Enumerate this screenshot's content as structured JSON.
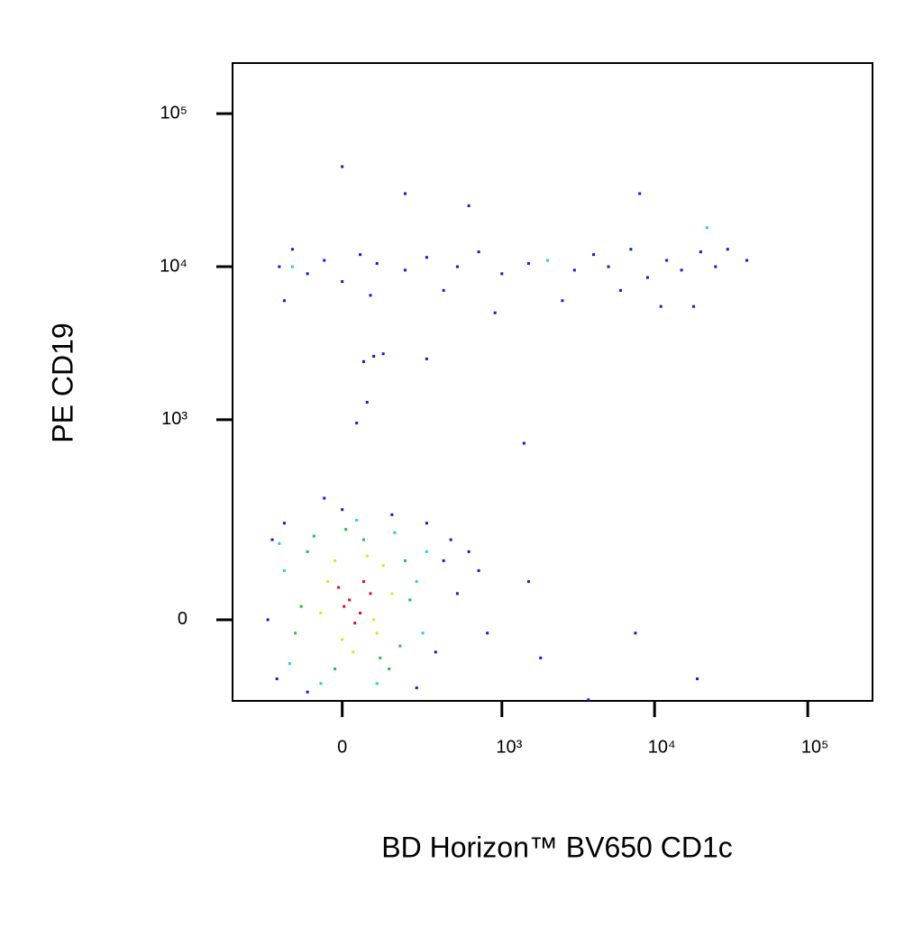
{
  "chart_data": {
    "type": "scatter",
    "xlabel": "BD Horizon™ BV650 CD1c",
    "ylabel": "PE CD19",
    "xscale": "asinh",
    "yscale": "asinh",
    "xlim": [
      -458,
      264700
    ],
    "ylim": [
      -153,
      213700
    ],
    "xticks": [
      0,
      {
        "value": 1000,
        "label": "10³"
      },
      {
        "value": 10000,
        "label": "10⁴"
      },
      {
        "value": 100000,
        "label": "10⁵"
      }
    ],
    "yticks": [
      0,
      {
        "value": 1000,
        "label": "10³"
      },
      {
        "value": 10000,
        "label": "10⁴"
      },
      {
        "value": 100000,
        "label": "10⁵"
      }
    ],
    "series": [
      {
        "color": "#1414e6",
        "x": [
          -250,
          -230,
          350,
          400,
          500,
          -210,
          -100,
          0,
          150,
          300,
          450,
          700,
          800,
          -180,
          250,
          1500,
          1800,
          3700,
          7500,
          19000,
          -50,
          600,
          -200,
          -150,
          -100,
          -50,
          0,
          50,
          100,
          200,
          300,
          500,
          700,
          1000,
          1500,
          2000,
          3000,
          4000,
          5000,
          7000,
          9000,
          12000,
          15000,
          20000,
          25000,
          30000,
          40000,
          -180,
          80,
          400,
          900,
          2500,
          6000,
          11000,
          18000,
          0,
          60,
          90,
          120,
          300,
          70,
          40,
          1400,
          8000,
          600,
          200
        ],
        "values": [
          0,
          150,
          -50,
          100,
          40,
          -100,
          -130,
          250,
          230,
          200,
          150,
          80,
          -20,
          200,
          -120,
          60,
          -60,
          -150,
          -20,
          -100,
          300,
          120,
          10000,
          13000,
          9000,
          11000,
          8000,
          12000,
          10500,
          9500,
          11500,
          10000,
          12500,
          9000,
          10500,
          11000,
          9500,
          12000,
          10000,
          13000,
          8500,
          11000,
          9500,
          12500,
          10000,
          13000,
          11000,
          6000,
          6500,
          7000,
          5000,
          6000,
          7000,
          5500,
          5500,
          45000,
          2400,
          2600,
          2700,
          2500,
          1300,
          950,
          700,
          30000,
          25000,
          30000
        ]
      },
      {
        "color": "#20d0e8",
        "x": [
          -180,
          250,
          -160,
          280,
          40,
          -60,
          160,
          300,
          -200,
          100,
          -150,
          2000,
          22000
        ],
        "values": [
          80,
          60,
          -70,
          -20,
          210,
          -110,
          170,
          120,
          140,
          -110,
          10000,
          11000,
          18000
        ]
      },
      {
        "color": "#22c040",
        "x": [
          -120,
          -100,
          180,
          200,
          -80,
          140,
          60,
          -20,
          220,
          10,
          -140,
          110
        ],
        "values": [
          20,
          120,
          -40,
          100,
          160,
          -80,
          150,
          -80,
          30,
          180,
          -20,
          -60
        ]
      },
      {
        "color": "#e8e020",
        "x": [
          -40,
          100,
          120,
          -60,
          0,
          70,
          150,
          30,
          -20,
          90
        ],
        "values": [
          60,
          -20,
          90,
          10,
          -30,
          110,
          40,
          -50,
          100,
          0
        ]
      },
      {
        "color": "#e01010",
        "x": [
          20,
          50,
          -10,
          35,
          80,
          5,
          60
        ],
        "values": [
          30,
          10,
          50,
          -5,
          40,
          20,
          60
        ]
      }
    ]
  }
}
